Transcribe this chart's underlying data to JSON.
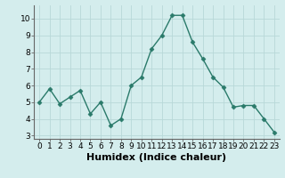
{
  "x": [
    0,
    1,
    2,
    3,
    4,
    5,
    6,
    7,
    8,
    9,
    10,
    11,
    12,
    13,
    14,
    15,
    16,
    17,
    18,
    19,
    20,
    21,
    22,
    23
  ],
  "y": [
    5.0,
    5.8,
    4.9,
    5.3,
    5.7,
    4.3,
    5.0,
    3.6,
    4.0,
    6.0,
    6.5,
    8.2,
    9.0,
    10.2,
    10.2,
    8.6,
    7.6,
    6.5,
    5.9,
    4.7,
    4.8,
    4.8,
    4.0,
    3.2
  ],
  "xlabel": "Humidex (Indice chaleur)",
  "ylim": [
    2.8,
    10.8
  ],
  "yticks": [
    3,
    4,
    5,
    6,
    7,
    8,
    9,
    10
  ],
  "xticks": [
    0,
    1,
    2,
    3,
    4,
    5,
    6,
    7,
    8,
    9,
    10,
    11,
    12,
    13,
    14,
    15,
    16,
    17,
    18,
    19,
    20,
    21,
    22,
    23
  ],
  "line_color": "#2a7a6a",
  "marker_color": "#2a7a6a",
  "bg_color": "#d4eded",
  "grid_color": "#b8d8d8",
  "xlabel_fontsize": 8,
  "tick_fontsize": 6.5,
  "linewidth": 1.0,
  "markersize": 2.5
}
